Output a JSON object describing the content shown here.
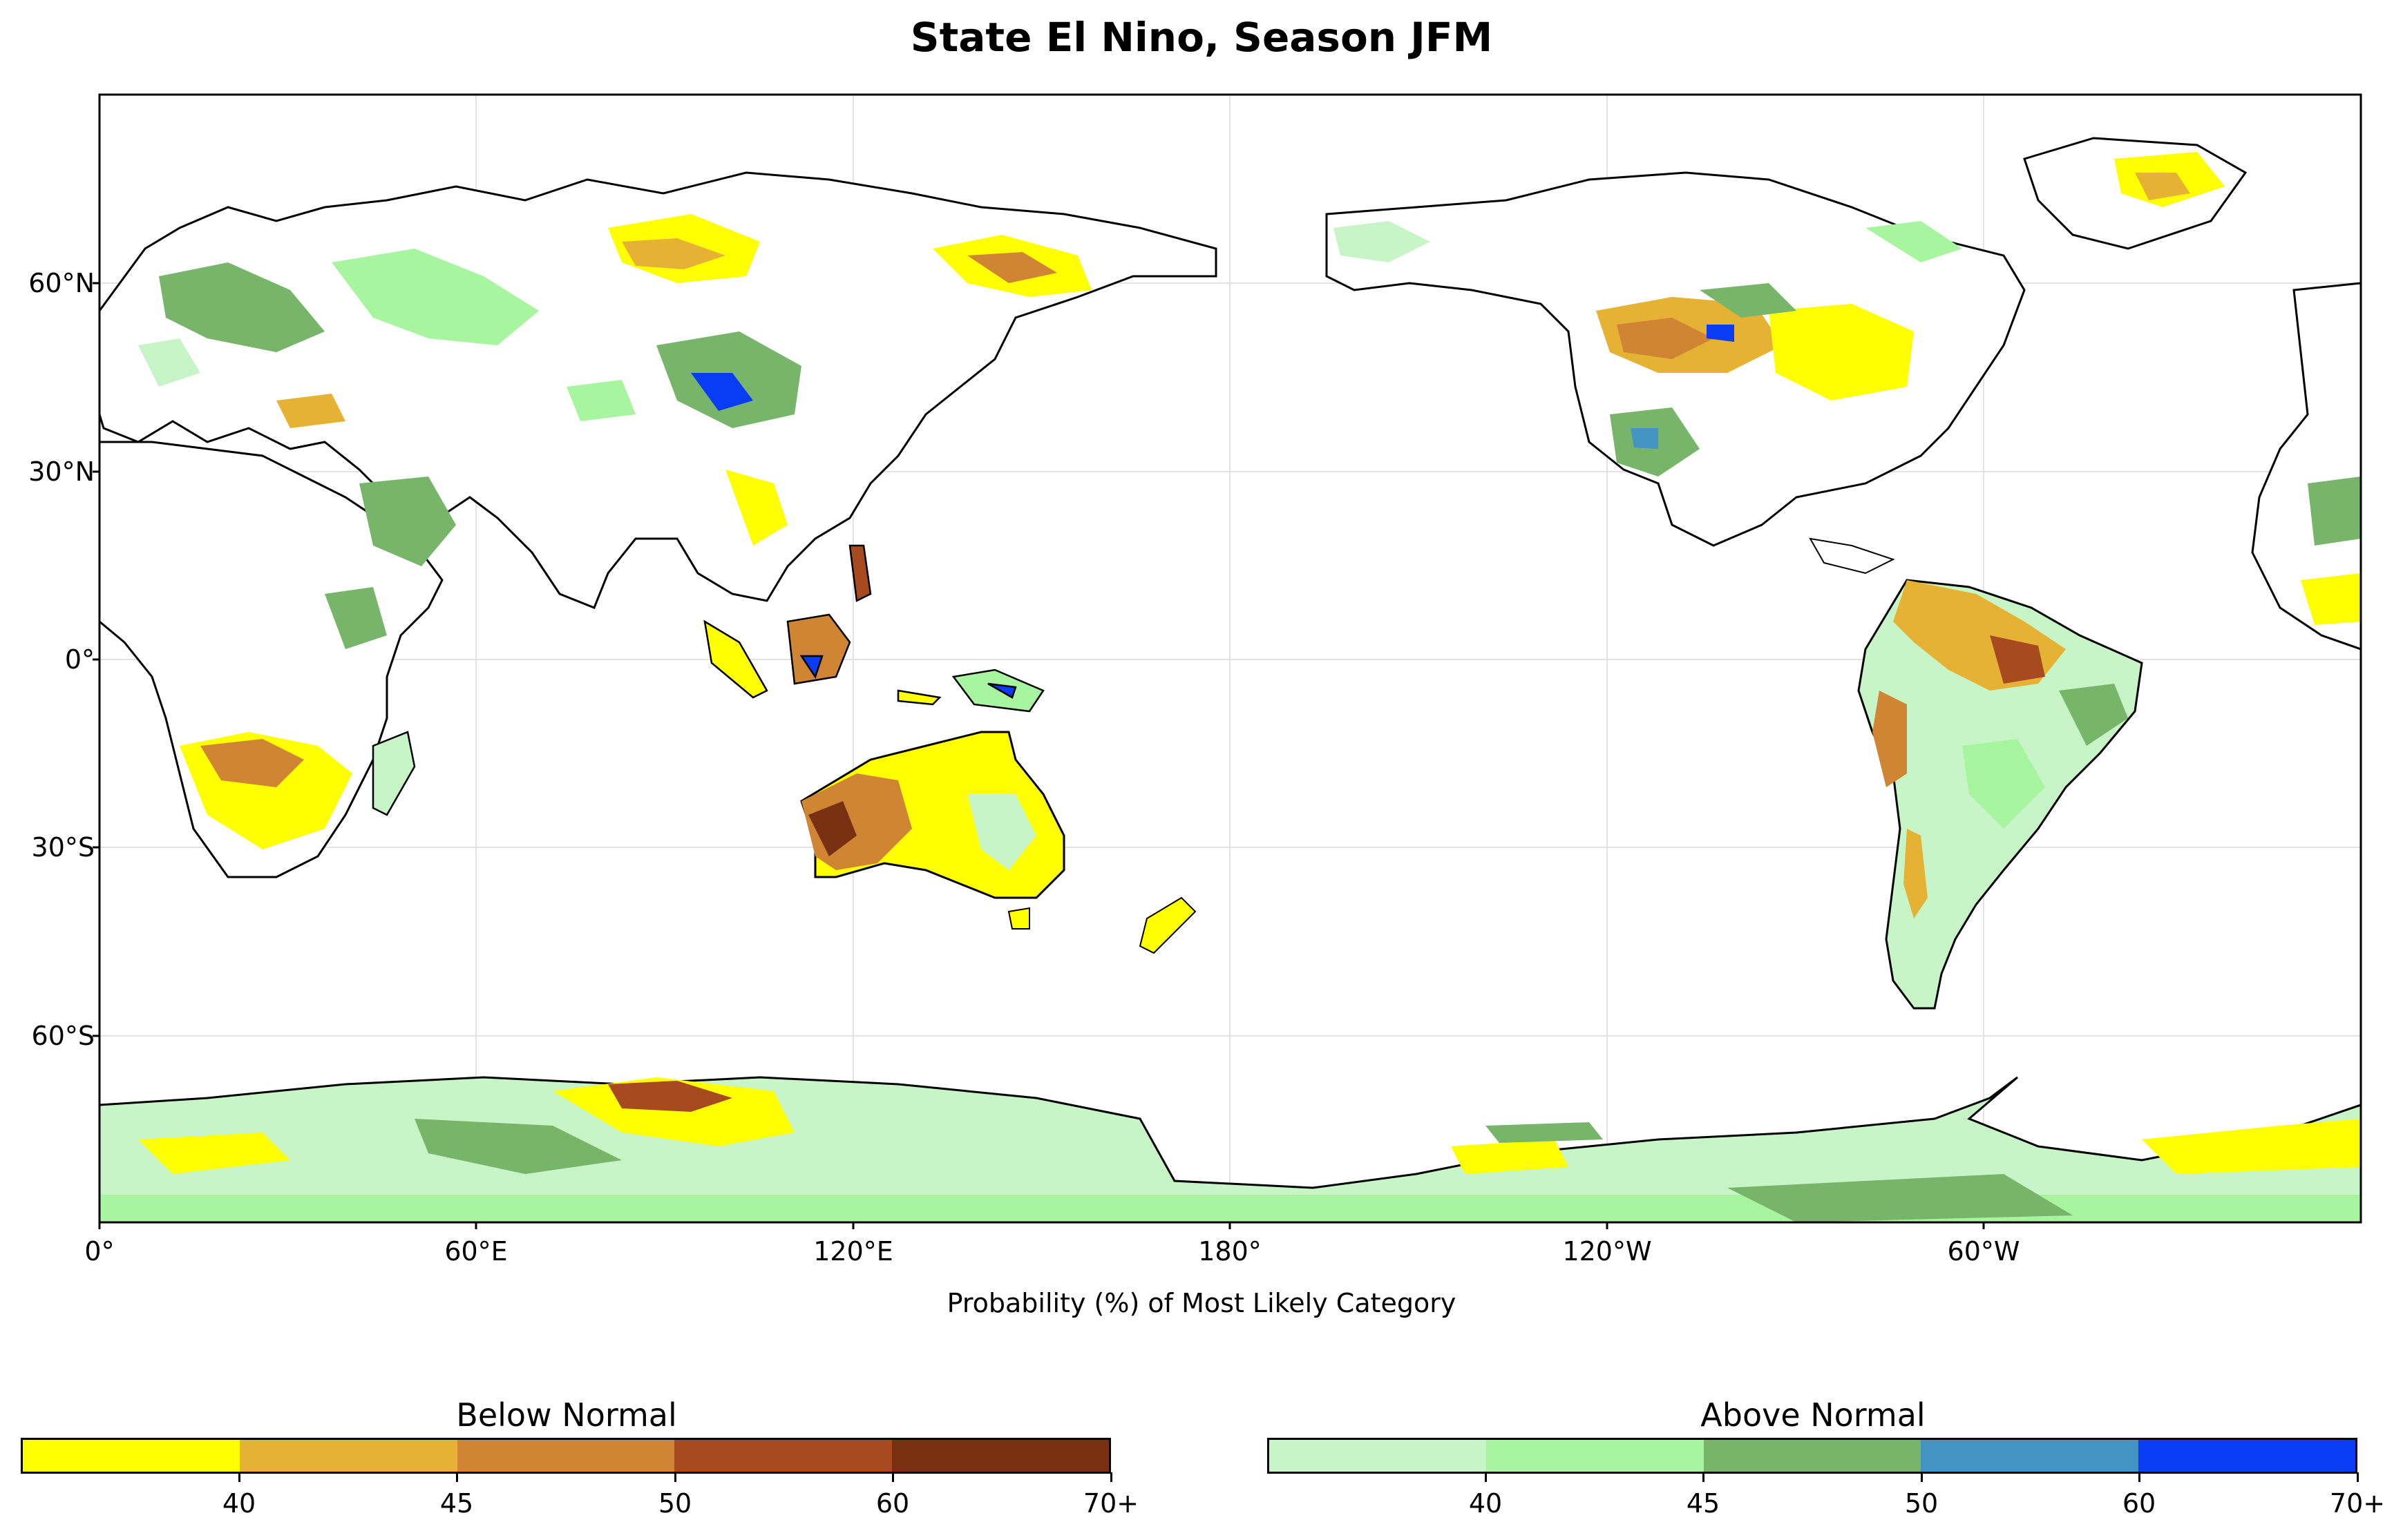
{
  "title": "State El Nino, Season JFM",
  "map": {
    "projection": "Plate Carree, centered 180°",
    "lat_ticks": [
      "60°N",
      "30°N",
      "0°",
      "30°S",
      "60°S"
    ],
    "lon_ticks": [
      "0°",
      "60°E",
      "120°E",
      "180°",
      "120°W",
      "60°W"
    ],
    "caption": "Probability (%) of Most Likely Category",
    "grid": true,
    "ocean_color": "#ffffff"
  },
  "legend": {
    "below": {
      "title": "Below Normal",
      "colors": [
        "#ffff00",
        "#e6b233",
        "#cf8533",
        "#a84a20",
        "#783010"
      ],
      "labels": [
        "40",
        "45",
        "50",
        "60",
        "70+"
      ]
    },
    "above": {
      "title": "Above Normal",
      "colors": [
        "#c8f5c8",
        "#a8f5a0",
        "#76b56a",
        "#4393c3",
        "#0a3cf5"
      ],
      "labels": [
        "40",
        "45",
        "50",
        "60",
        "70+"
      ]
    }
  }
}
